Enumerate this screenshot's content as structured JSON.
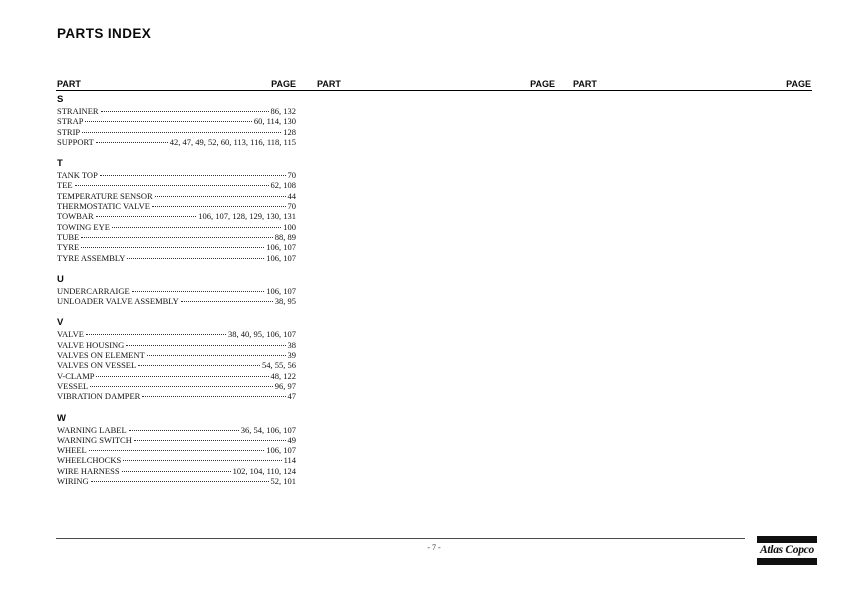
{
  "page": {
    "title": "PARTS INDEX",
    "page_number": "- 7 -"
  },
  "table": {
    "columns": [
      {
        "part_label": "PART",
        "page_label": "PAGE"
      },
      {
        "part_label": "PART",
        "page_label": "PAGE"
      },
      {
        "part_label": "PART",
        "page_label": "PAGE"
      }
    ],
    "sections": [
      {
        "letter": "S",
        "entries": [
          {
            "name": "STRAINER",
            "pages": "86, 132"
          },
          {
            "name": "STRAP",
            "pages": "60, 114, 130"
          },
          {
            "name": "STRIP",
            "pages": "128"
          },
          {
            "name": "SUPPORT",
            "pages": "42, 47, 49, 52, 60, 113, 116, 118, 115"
          }
        ]
      },
      {
        "letter": "T",
        "entries": [
          {
            "name": "TANK TOP",
            "pages": "70"
          },
          {
            "name": "TEE",
            "pages": "62, 108"
          },
          {
            "name": "TEMPERATURE SENSOR",
            "pages": "44"
          },
          {
            "name": "THERMOSTATIC VALVE",
            "pages": "70"
          },
          {
            "name": "TOWBAR",
            "pages": "106, 107, 128, 129, 130, 131"
          },
          {
            "name": "TOWING EYE",
            "pages": "100"
          },
          {
            "name": "TUBE",
            "pages": "88, 89"
          },
          {
            "name": "TYRE",
            "pages": "106, 107"
          },
          {
            "name": "TYRE ASSEMBLY",
            "pages": "106, 107"
          }
        ]
      },
      {
        "letter": "U",
        "entries": [
          {
            "name": "UNDERCARRAIGE",
            "pages": "106, 107"
          },
          {
            "name": "UNLOADER VALVE ASSEMBLY",
            "pages": "38, 95"
          }
        ]
      },
      {
        "letter": "V",
        "entries": [
          {
            "name": "VALVE",
            "pages": "38, 40, 95, 106, 107"
          },
          {
            "name": "VALVE HOUSING",
            "pages": "38"
          },
          {
            "name": "VALVES ON ELEMENT",
            "pages": "39"
          },
          {
            "name": "VALVES ON VESSEL",
            "pages": "54, 55, 56"
          },
          {
            "name": "V-CLAMP",
            "pages": "48, 122"
          },
          {
            "name": "VESSEL",
            "pages": "96, 97"
          },
          {
            "name": "VIBRATION DAMPER",
            "pages": "47"
          }
        ]
      },
      {
        "letter": "W",
        "entries": [
          {
            "name": "WARNING LABEL",
            "pages": "36, 54, 106, 107"
          },
          {
            "name": "WARNING SWITCH",
            "pages": "49"
          },
          {
            "name": "WHEEL",
            "pages": "106, 107"
          },
          {
            "name": "WHEELCHOCKS",
            "pages": "114"
          },
          {
            "name": "WIRE HARNESS",
            "pages": "102, 104, 110, 124"
          },
          {
            "name": "WIRING",
            "pages": "52, 101"
          }
        ]
      }
    ]
  },
  "footer": {
    "logo_brand": "Atlas Copco"
  }
}
